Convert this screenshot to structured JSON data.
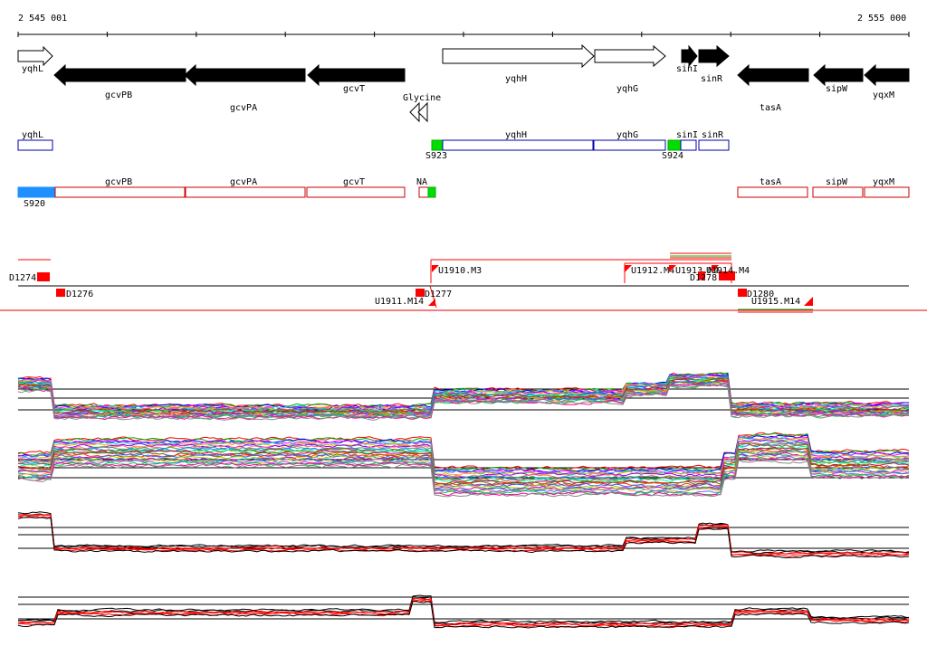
{
  "ruler": {
    "start_label": "2 545 001",
    "end_label": "2 555 000"
  },
  "genes": [
    {
      "label": "yqhL",
      "strand": "+",
      "filled": false
    },
    {
      "label": "gcvPB",
      "strand": "-",
      "filled": true
    },
    {
      "label": "gcvPA",
      "strand": "-",
      "filled": true
    },
    {
      "label": "gcvT",
      "strand": "-",
      "filled": true
    },
    {
      "label": "yqhH",
      "strand": "+",
      "filled": false
    },
    {
      "label": "yqhG",
      "strand": "+",
      "filled": false
    },
    {
      "label": "sinI",
      "strand": "+",
      "filled": true
    },
    {
      "label": "sinR",
      "strand": "+",
      "filled": true
    },
    {
      "label": "tasA",
      "strand": "-",
      "filled": true
    },
    {
      "label": "sipW",
      "strand": "-",
      "filled": true
    },
    {
      "label": "yqxM",
      "strand": "-",
      "filled": true
    }
  ],
  "riboswitch": {
    "label": "Glycine"
  },
  "plus_boxes": [
    {
      "label": "yqhL"
    },
    {
      "label": "yqhH"
    },
    {
      "label": "yqhG"
    },
    {
      "label": "sinI"
    },
    {
      "label": "sinR"
    },
    {
      "label": "S923"
    },
    {
      "label": "S924"
    }
  ],
  "minus_boxes": [
    {
      "label": "gcvPB"
    },
    {
      "label": "gcvPA"
    },
    {
      "label": "gcvT"
    },
    {
      "label": "tasA"
    },
    {
      "label": "sipW"
    },
    {
      "label": "yqxM"
    },
    {
      "label": "S920"
    },
    {
      "label": "NA"
    }
  ],
  "features": [
    {
      "label": "D1274"
    },
    {
      "label": "D1276"
    },
    {
      "label": "U1910.M3"
    },
    {
      "label": "U1911.M14"
    },
    {
      "label": "D1277"
    },
    {
      "label": "U1912.M4"
    },
    {
      "label": "U1913.M4"
    },
    {
      "label": "D1278"
    },
    {
      "label": "U1914.M4"
    },
    {
      "label": "D1280"
    },
    {
      "label": "U1915.M14"
    }
  ],
  "colors": {
    "gene_fill": "#000000",
    "plus_box": "#0000aa",
    "minus_box": "#cc0000",
    "segment_blue": "#1e90ff",
    "segment_green": "#00dd00",
    "feature_red": "#ff0000"
  }
}
